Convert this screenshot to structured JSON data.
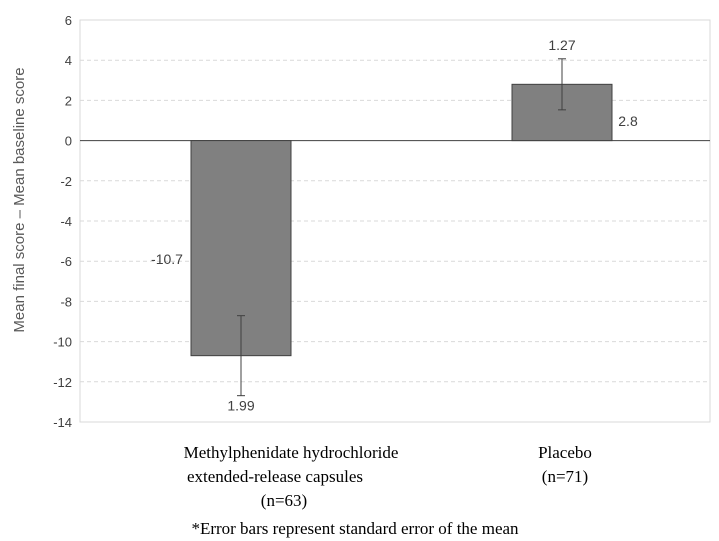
{
  "chart_data": {
    "type": "bar",
    "ylabel": "Mean final score – Mean baseline score",
    "ylim": [
      -14,
      6
    ],
    "yticks": [
      6,
      4,
      2,
      0,
      -2,
      -4,
      -6,
      -8,
      -10,
      -12,
      -14
    ],
    "grid": true,
    "categories": [
      {
        "lines": [
          "Methylphenidate hydrochloride",
          "extended-release capsules",
          "(n=63)"
        ],
        "value": -10.7,
        "value_label": "-10.7",
        "error": 1.99,
        "error_label": "1.99"
      },
      {
        "lines": [
          "Placebo",
          "(n=71)"
        ],
        "value": 2.8,
        "value_label": "2.8",
        "error": 1.27,
        "error_label": "1.27"
      }
    ],
    "bar_color": "#808080",
    "footnote": "*Error bars represent standard error of the mean"
  }
}
